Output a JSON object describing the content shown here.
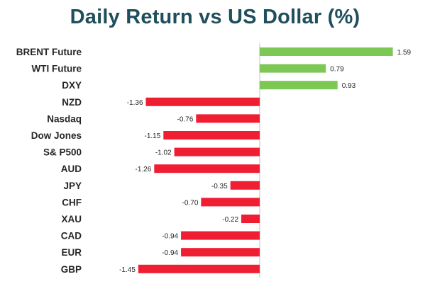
{
  "chart_data": {
    "type": "bar",
    "orientation": "horizontal",
    "title": "Daily Return vs US Dollar (%)",
    "xlabel": "",
    "ylabel": "",
    "categories": [
      "BRENT Future",
      "WTI Future",
      "DXY",
      "NZD",
      "Nasdaq",
      "Dow Jones",
      "S& P500",
      "AUD",
      "JPY",
      "CHF",
      "XAU",
      "CAD",
      "EUR",
      "GBP"
    ],
    "values": [
      1.59,
      0.79,
      0.93,
      -1.36,
      -0.76,
      -1.15,
      -1.02,
      -1.26,
      -0.35,
      -0.7,
      -0.22,
      -0.94,
      -0.94,
      -1.45
    ],
    "value_labels": [
      "1.59",
      "0.79",
      "0.93",
      "-1.36",
      "-0.76",
      "-1.15",
      "-1.02",
      "-1.26",
      "-0.35",
      "-0.70",
      "-0.22",
      "-0.94",
      "-0.94",
      "-1.45"
    ],
    "xlim": [
      -1.45,
      1.59
    ],
    "grid": false,
    "legend": "none",
    "colors": {
      "positive": "#7dc855",
      "negative": "#f01e32",
      "axis": "#bfbfbf",
      "title": "#1f4e5c"
    }
  }
}
